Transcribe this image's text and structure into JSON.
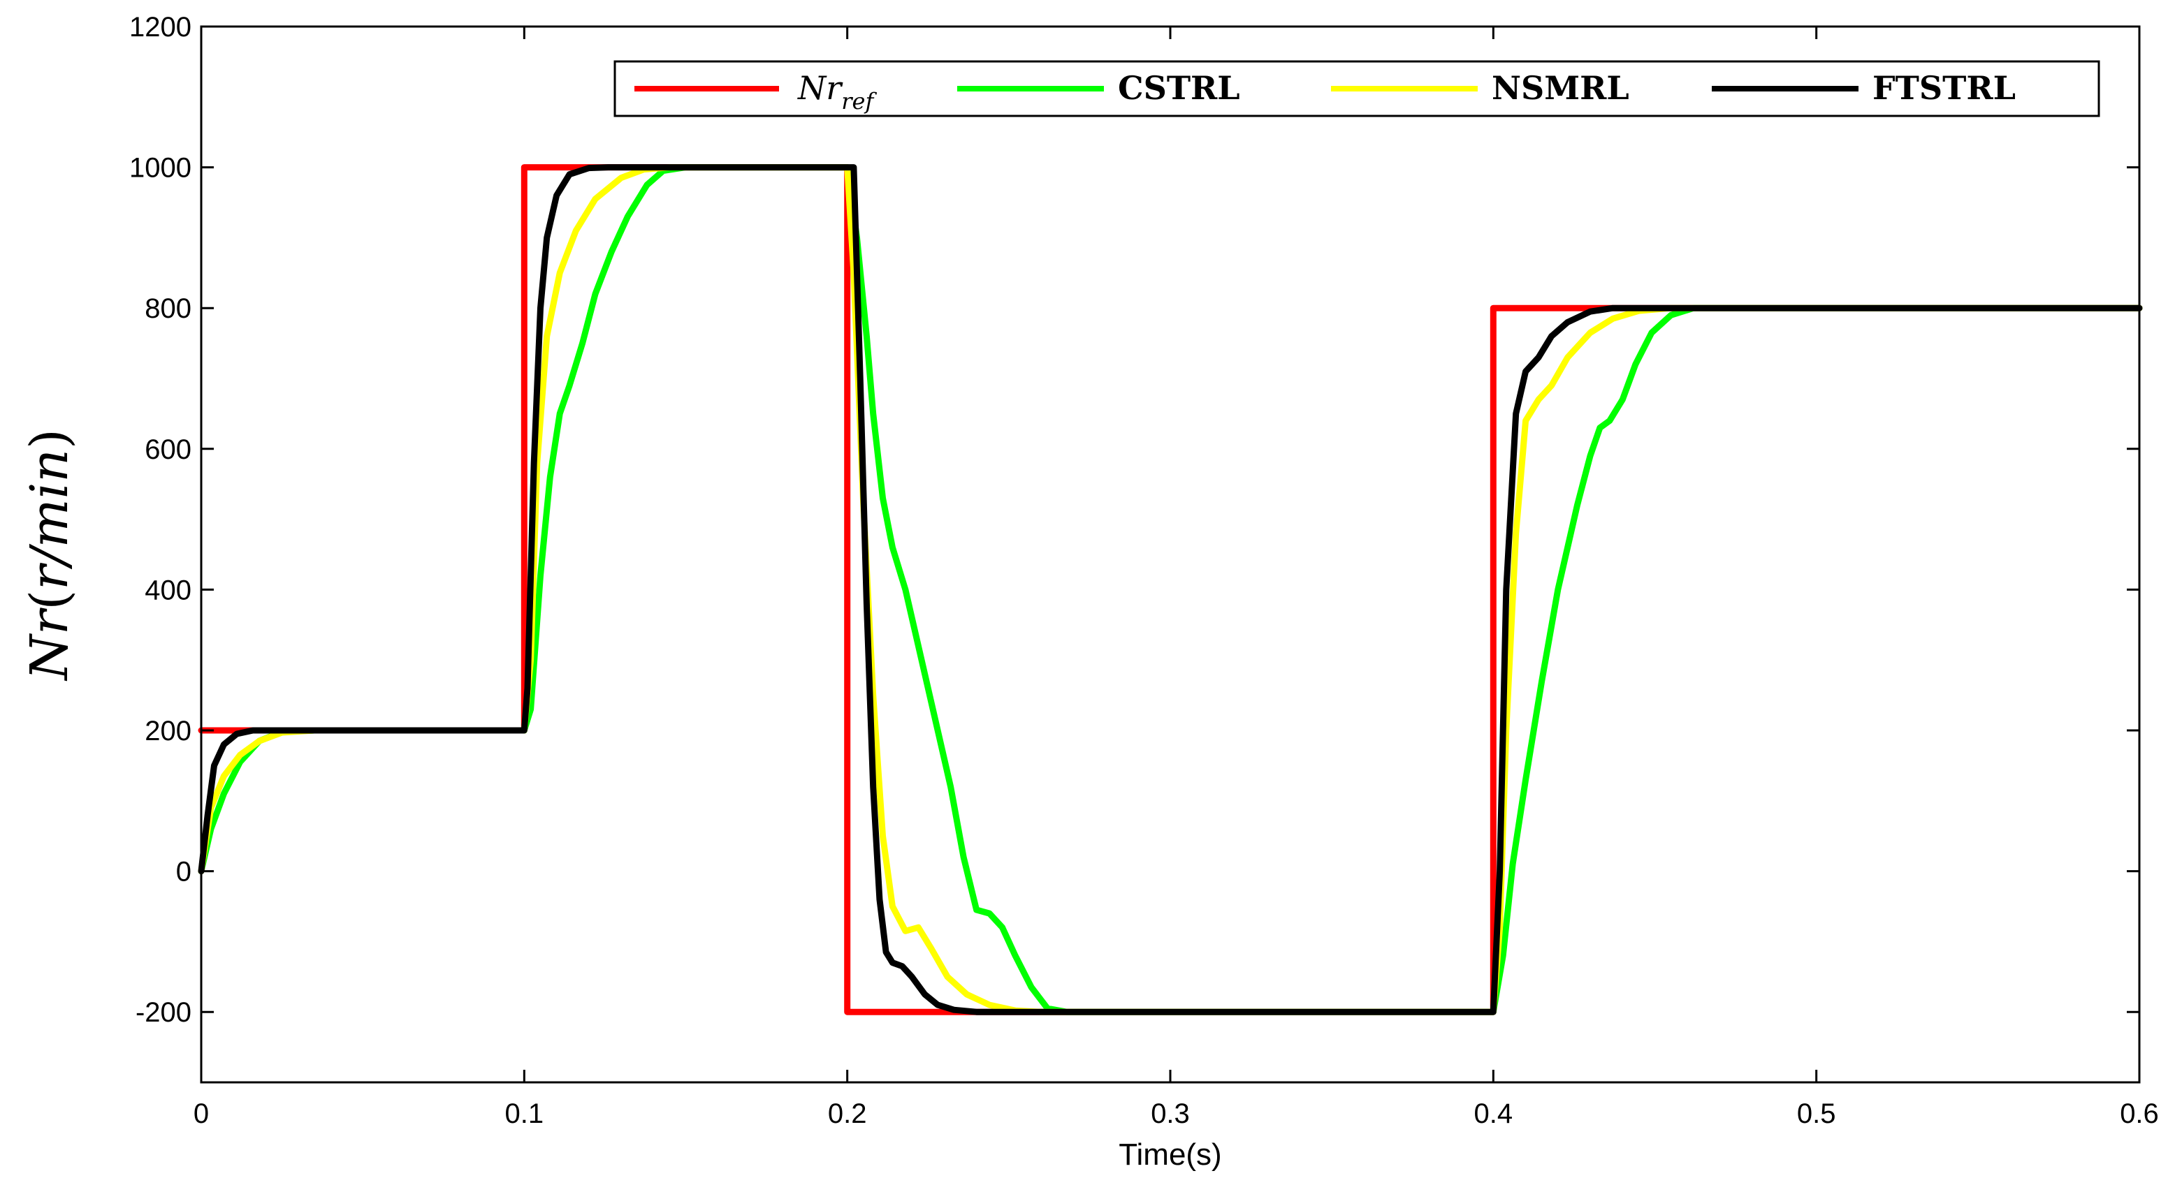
{
  "chart_data": {
    "type": "line",
    "title": "",
    "xlabel": "Time(s)",
    "ylabel": {
      "main": "Nr",
      "open": "(",
      "unit": "r/min",
      "close": ")"
    },
    "xlim": [
      0,
      0.6
    ],
    "ylim": [
      -300,
      1200
    ],
    "xticks": [
      0,
      0.1,
      0.2,
      0.3,
      0.4,
      0.5,
      0.6
    ],
    "xtick_labels": [
      "0",
      "0.1",
      "0.2",
      "0.3",
      "0.4",
      "0.5",
      "0.6"
    ],
    "yticks": [
      -200,
      0,
      200,
      400,
      600,
      800,
      1000,
      1200
    ],
    "ytick_labels": [
      "-200",
      "0",
      "200",
      "400",
      "600",
      "800",
      "1000",
      "1200"
    ],
    "legend_position": "top-right",
    "legend": [
      {
        "main": "Nr",
        "sub": "ref",
        "color": "#ff0000"
      },
      {
        "label": "CSTRL",
        "color": "#00ff00"
      },
      {
        "label": "NSMRL",
        "color": "#ffff00"
      },
      {
        "label": "FTSTRL",
        "color": "#000000"
      }
    ],
    "series": [
      {
        "name": "Nr_ref",
        "color": "#ff0000",
        "values": [
          [
            0,
            200
          ],
          [
            0.1,
            200
          ],
          [
            0.1,
            1000
          ],
          [
            0.2,
            1000
          ],
          [
            0.2,
            -200
          ],
          [
            0.4,
            -200
          ],
          [
            0.4,
            800
          ],
          [
            0.6,
            800
          ]
        ]
      },
      {
        "name": "CSTRL",
        "color": "#00ff00",
        "values": [
          [
            0,
            0
          ],
          [
            0.003,
            60
          ],
          [
            0.007,
            110
          ],
          [
            0.012,
            155
          ],
          [
            0.018,
            185
          ],
          [
            0.025,
            198
          ],
          [
            0.035,
            200
          ],
          [
            0.1,
            200
          ],
          [
            0.102,
            230
          ],
          [
            0.105,
            420
          ],
          [
            0.108,
            560
          ],
          [
            0.111,
            650
          ],
          [
            0.114,
            690
          ],
          [
            0.118,
            750
          ],
          [
            0.122,
            820
          ],
          [
            0.127,
            880
          ],
          [
            0.132,
            930
          ],
          [
            0.138,
            975
          ],
          [
            0.143,
            995
          ],
          [
            0.15,
            1000
          ],
          [
            0.2,
            1000
          ],
          [
            0.203,
            900
          ],
          [
            0.206,
            760
          ],
          [
            0.208,
            650
          ],
          [
            0.211,
            530
          ],
          [
            0.214,
            460
          ],
          [
            0.218,
            400
          ],
          [
            0.222,
            320
          ],
          [
            0.227,
            220
          ],
          [
            0.232,
            120
          ],
          [
            0.236,
            20
          ],
          [
            0.24,
            -55
          ],
          [
            0.244,
            -60
          ],
          [
            0.248,
            -80
          ],
          [
            0.252,
            -120
          ],
          [
            0.257,
            -165
          ],
          [
            0.262,
            -195
          ],
          [
            0.268,
            -200
          ],
          [
            0.4,
            -200
          ],
          [
            0.403,
            -120
          ],
          [
            0.406,
            10
          ],
          [
            0.41,
            130
          ],
          [
            0.415,
            270
          ],
          [
            0.42,
            400
          ],
          [
            0.426,
            520
          ],
          [
            0.43,
            590
          ],
          [
            0.433,
            630
          ],
          [
            0.436,
            640
          ],
          [
            0.44,
            670
          ],
          [
            0.444,
            720
          ],
          [
            0.449,
            765
          ],
          [
            0.455,
            790
          ],
          [
            0.462,
            800
          ],
          [
            0.6,
            800
          ]
        ]
      },
      {
        "name": "NSMRL",
        "color": "#ffff00",
        "values": [
          [
            0,
            0
          ],
          [
            0.003,
            90
          ],
          [
            0.007,
            135
          ],
          [
            0.012,
            165
          ],
          [
            0.018,
            185
          ],
          [
            0.025,
            197
          ],
          [
            0.035,
            200
          ],
          [
            0.1,
            200
          ],
          [
            0.102,
            300
          ],
          [
            0.104,
            580
          ],
          [
            0.107,
            760
          ],
          [
            0.111,
            850
          ],
          [
            0.116,
            910
          ],
          [
            0.122,
            955
          ],
          [
            0.13,
            985
          ],
          [
            0.137,
            997
          ],
          [
            0.145,
            1000
          ],
          [
            0.2,
            1000
          ],
          [
            0.202,
            850
          ],
          [
            0.205,
            520
          ],
          [
            0.208,
            250
          ],
          [
            0.211,
            50
          ],
          [
            0.214,
            -50
          ],
          [
            0.218,
            -85
          ],
          [
            0.222,
            -80
          ],
          [
            0.226,
            -110
          ],
          [
            0.231,
            -150
          ],
          [
            0.237,
            -175
          ],
          [
            0.244,
            -190
          ],
          [
            0.252,
            -198
          ],
          [
            0.26,
            -200
          ],
          [
            0.4,
            -200
          ],
          [
            0.402,
            -80
          ],
          [
            0.404,
            200
          ],
          [
            0.407,
            480
          ],
          [
            0.41,
            640
          ],
          [
            0.414,
            670
          ],
          [
            0.418,
            690
          ],
          [
            0.423,
            730
          ],
          [
            0.43,
            765
          ],
          [
            0.437,
            785
          ],
          [
            0.445,
            796
          ],
          [
            0.455,
            800
          ],
          [
            0.6,
            800
          ]
        ]
      },
      {
        "name": "FTSTRL",
        "color": "#000000",
        "values": [
          [
            0,
            0
          ],
          [
            0.002,
            80
          ],
          [
            0.004,
            150
          ],
          [
            0.007,
            180
          ],
          [
            0.011,
            195
          ],
          [
            0.016,
            200
          ],
          [
            0.1,
            200
          ],
          [
            0.101,
            260
          ],
          [
            0.103,
            580
          ],
          [
            0.105,
            800
          ],
          [
            0.107,
            900
          ],
          [
            0.11,
            960
          ],
          [
            0.114,
            990
          ],
          [
            0.12,
            999
          ],
          [
            0.126,
            1000
          ],
          [
            0.202,
            1000
          ],
          [
            0.204,
            700
          ],
          [
            0.206,
            380
          ],
          [
            0.208,
            120
          ],
          [
            0.21,
            -40
          ],
          [
            0.212,
            -115
          ],
          [
            0.214,
            -130
          ],
          [
            0.217,
            -135
          ],
          [
            0.22,
            -150
          ],
          [
            0.224,
            -175
          ],
          [
            0.228,
            -190
          ],
          [
            0.233,
            -197
          ],
          [
            0.24,
            -200
          ],
          [
            0.4,
            -200
          ],
          [
            0.402,
            0
          ],
          [
            0.404,
            400
          ],
          [
            0.407,
            650
          ],
          [
            0.41,
            710
          ],
          [
            0.414,
            730
          ],
          [
            0.418,
            760
          ],
          [
            0.423,
            780
          ],
          [
            0.43,
            795
          ],
          [
            0.437,
            800
          ],
          [
            0.6,
            800
          ]
        ]
      }
    ]
  }
}
